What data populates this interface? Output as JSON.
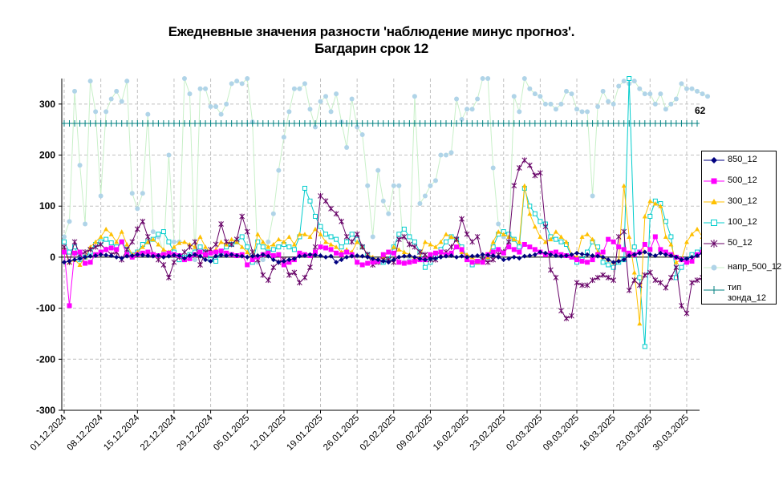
{
  "chart_data": {
    "type": "line",
    "title": "Ежедневные значения разности 'наблюдение минус прогноз'.",
    "subtitle": "Багдарин    срок 12",
    "ylim": [
      -300,
      350
    ],
    "yticks": [
      -300,
      -200,
      -100,
      0,
      100,
      200,
      300
    ],
    "date_start": "2024-12-01",
    "num_days": 122,
    "xtick_labels": [
      "01.12.2024",
      "08.12.2024",
      "15.12.2024",
      "22.12.2024",
      "29.12.2024",
      "05.01.2025",
      "12.01.2025",
      "19.01.2025",
      "26.01.2025",
      "02.02.2025",
      "09.02.2025",
      "16.02.2025",
      "23.02.2025",
      "02.03.2025",
      "09.03.2025",
      "16.03.2025",
      "23.03.2025",
      "30.03.2025"
    ],
    "grid": true,
    "legend_position": "right",
    "annotation": "62",
    "series": [
      {
        "name": "850_12",
        "color": "#000080",
        "marker": "diamond",
        "values": [
          -10,
          -8,
          -5,
          -3,
          0,
          2,
          3,
          5,
          4,
          3,
          0,
          -2,
          2,
          3,
          5,
          4,
          3,
          2,
          3,
          0,
          2,
          4,
          3,
          -2,
          3,
          5,
          2,
          -5,
          -8,
          2,
          4,
          3,
          5,
          3,
          2,
          0,
          2,
          3,
          5,
          2,
          -5,
          -10,
          -8,
          -5,
          -3,
          2,
          3,
          5,
          4,
          3,
          0,
          2,
          -10,
          -5,
          0,
          2,
          3,
          2,
          0,
          -3,
          -5,
          -8,
          -10,
          -5,
          0,
          2,
          3,
          0,
          -3,
          -5,
          -3,
          -2,
          0,
          2,
          3,
          0,
          2,
          0,
          2,
          3,
          5,
          4,
          3,
          0,
          -5,
          -3,
          0,
          -2,
          2,
          3,
          5,
          10,
          8,
          5,
          3,
          2,
          3,
          5,
          8,
          6,
          5,
          3,
          2,
          0,
          -5,
          -10,
          -8,
          -5,
          3,
          5,
          8,
          10,
          5,
          3,
          8,
          5,
          3,
          0,
          -5,
          -3,
          0,
          3,
          8,
          5,
          3,
          2
        ]
      },
      {
        "name": "500_12",
        "color": "#ff00ff",
        "marker": "square",
        "values": [
          10,
          -95,
          8,
          10,
          -12,
          -10,
          5,
          10,
          15,
          18,
          15,
          30,
          5,
          0,
          5,
          8,
          10,
          5,
          3,
          5,
          8,
          5,
          3,
          -5,
          -3,
          5,
          10,
          5,
          8,
          10,
          12,
          8,
          5,
          3,
          5,
          -15,
          -5,
          0,
          5,
          8,
          3,
          5,
          -15,
          -10,
          -5,
          8,
          5,
          3,
          10,
          20,
          18,
          15,
          8,
          5,
          10,
          5,
          -10,
          -15,
          -12,
          -10,
          -8,
          5,
          10,
          8,
          -10,
          -12,
          -10,
          -8,
          -5,
          -5,
          5,
          8,
          10,
          5,
          8,
          20,
          15,
          -5,
          -10,
          -8,
          -10,
          5,
          10,
          15,
          8,
          20,
          15,
          10,
          25,
          20,
          15,
          10,
          5,
          8,
          10,
          5,
          3,
          0,
          -5,
          -8,
          -10,
          -5,
          5,
          10,
          35,
          30,
          20,
          15,
          8,
          5,
          10,
          25,
          15,
          40,
          15,
          10,
          5,
          0,
          -5,
          -10,
          -8,
          5,
          10,
          8
        ]
      },
      {
        "name": "300_12",
        "color": "#ffc000",
        "marker": "triangle",
        "values": [
          15,
          -10,
          -5,
          -15,
          0,
          20,
          30,
          40,
          55,
          45,
          30,
          50,
          25,
          5,
          10,
          20,
          30,
          35,
          25,
          15,
          10,
          20,
          28,
          30,
          25,
          20,
          40,
          20,
          10,
          15,
          30,
          25,
          35,
          30,
          20,
          10,
          -5,
          45,
          30,
          20,
          25,
          35,
          30,
          40,
          25,
          45,
          45,
          40,
          55,
          45,
          30,
          25,
          20,
          10,
          15,
          10,
          30,
          20,
          5,
          0,
          -5,
          0,
          10,
          20,
          15,
          10,
          5,
          -5,
          0,
          30,
          25,
          20,
          30,
          45,
          40,
          35,
          10,
          5,
          0,
          -10,
          -5,
          0,
          30,
          50,
          45,
          40,
          35,
          30,
          140,
          85,
          60,
          40,
          30,
          35,
          50,
          40,
          30,
          5,
          0,
          40,
          45,
          35,
          10,
          0,
          -5,
          -10,
          -5,
          140,
          40,
          -30,
          -130,
          80,
          110,
          105,
          100,
          40,
          25,
          -10,
          -5,
          30,
          45,
          55,
          40
        ]
      },
      {
        "name": "100_12",
        "color": "#00cccc",
        "marker": "square-open",
        "values": [
          30,
          10,
          20,
          -5,
          0,
          10,
          25,
          30,
          35,
          28,
          20,
          30,
          15,
          5,
          10,
          25,
          30,
          35,
          45,
          50,
          30,
          10,
          -5,
          0,
          5,
          10,
          20,
          10,
          -5,
          -8,
          10,
          20,
          25,
          30,
          40,
          20,
          -10,
          30,
          20,
          10,
          15,
          20,
          25,
          20,
          15,
          40,
          135,
          110,
          80,
          60,
          45,
          40,
          35,
          20,
          30,
          45,
          35,
          20,
          5,
          -5,
          -8,
          -10,
          -5,
          20,
          45,
          55,
          40,
          30,
          10,
          -20,
          -10,
          0,
          15,
          30,
          40,
          35,
          20,
          0,
          -15,
          -10,
          -5,
          0,
          20,
          45,
          50,
          45,
          35,
          20,
          135,
          100,
          85,
          70,
          65,
          40,
          35,
          30,
          25,
          0,
          -10,
          -5,
          10,
          30,
          20,
          -10,
          -15,
          -20,
          -10,
          -5,
          350,
          20,
          -40,
          -175,
          80,
          110,
          105,
          70,
          40,
          -40,
          -20,
          -5,
          5,
          10,
          15,
          10
        ]
      },
      {
        "name": "50_12",
        "color": "#660066",
        "marker": "x",
        "values": [
          20,
          -10,
          30,
          5,
          10,
          15,
          20,
          25,
          15,
          5,
          10,
          -5,
          15,
          30,
          55,
          70,
          40,
          5,
          -5,
          -15,
          -40,
          -10,
          0,
          10,
          20,
          30,
          -15,
          10,
          15,
          25,
          65,
          30,
          25,
          35,
          80,
          50,
          10,
          -5,
          -35,
          -45,
          -20,
          -10,
          -5,
          -35,
          -30,
          -50,
          -40,
          -20,
          20,
          120,
          110,
          95,
          85,
          70,
          40,
          30,
          45,
          20,
          5,
          -15,
          -10,
          -5,
          -5,
          -10,
          35,
          40,
          25,
          20,
          10,
          5,
          -5,
          -5,
          5,
          10,
          20,
          35,
          75,
          45,
          30,
          40,
          -5,
          -10,
          -5,
          5,
          10,
          30,
          140,
          175,
          190,
          180,
          160,
          165,
          60,
          -25,
          -40,
          -105,
          -120,
          -115,
          -50,
          -55,
          -55,
          -45,
          -40,
          -35,
          -40,
          -45,
          40,
          50,
          -65,
          -45,
          -55,
          -35,
          -30,
          -45,
          -50,
          -60,
          -40,
          -20,
          -95,
          -110,
          -50,
          -45,
          -40,
          -35
        ]
      },
      {
        "name": "напр_500_12",
        "color": "#b0d4e8",
        "line_color": "#c8f0c8",
        "marker": "dot",
        "values": [
          40,
          70,
          325,
          180,
          65,
          345,
          285,
          120,
          285,
          310,
          325,
          305,
          345,
          125,
          95,
          125,
          280,
          50,
          40,
          10,
          200,
          30,
          30,
          350,
          320,
          -5,
          330,
          330,
          295,
          295,
          280,
          300,
          340,
          345,
          340,
          350,
          265,
          -10,
          -5,
          30,
          85,
          170,
          235,
          285,
          330,
          330,
          340,
          290,
          255,
          305,
          315,
          285,
          320,
          265,
          215,
          310,
          255,
          240,
          140,
          40,
          170,
          110,
          85,
          140,
          140,
          -10,
          -5,
          315,
          105,
          120,
          140,
          150,
          200,
          200,
          205,
          310,
          270,
          290,
          290,
          310,
          350,
          350,
          175,
          65,
          40,
          30,
          315,
          285,
          350,
          330,
          320,
          315,
          300,
          300,
          290,
          300,
          325,
          320,
          290,
          285,
          285,
          120,
          295,
          325,
          305,
          300,
          335,
          345,
          340,
          345,
          330,
          320,
          320,
          300,
          320,
          290,
          300,
          310,
          340,
          330,
          330,
          325,
          320,
          315
        ]
      },
      {
        "name": "тип зонда_12",
        "color": "#008080",
        "marker": "plus",
        "values": [
          262,
          262,
          262,
          262,
          262,
          262,
          262,
          262,
          262,
          262,
          262,
          262,
          262,
          262,
          262,
          262,
          262,
          262,
          262,
          262,
          262,
          262,
          262,
          262,
          262,
          262,
          262,
          262,
          262,
          262,
          262,
          262,
          262,
          262,
          262,
          262,
          262,
          262,
          262,
          262,
          262,
          262,
          262,
          262,
          262,
          262,
          262,
          262,
          262,
          262,
          262,
          262,
          262,
          262,
          262,
          262,
          262,
          262,
          262,
          262,
          262,
          262,
          262,
          262,
          262,
          262,
          262,
          262,
          262,
          262,
          262,
          262,
          262,
          262,
          262,
          262,
          262,
          262,
          262,
          262,
          262,
          262,
          262,
          262,
          262,
          262,
          262,
          262,
          262,
          262,
          262,
          262,
          262,
          262,
          262,
          262,
          262,
          262,
          262,
          262,
          262,
          262,
          262,
          262,
          262,
          262,
          262,
          262,
          262,
          262,
          262,
          262,
          262,
          262,
          262,
          262,
          262,
          262,
          262,
          262,
          262,
          262
        ]
      }
    ]
  },
  "legend": {
    "items": [
      {
        "label": "850_12"
      },
      {
        "label": "500_12"
      },
      {
        "label": "300_12"
      },
      {
        "label": "100_12"
      },
      {
        "label": "50_12"
      },
      {
        "label": "напр_500_12"
      },
      {
        "label": "тип зонда_12"
      }
    ]
  }
}
